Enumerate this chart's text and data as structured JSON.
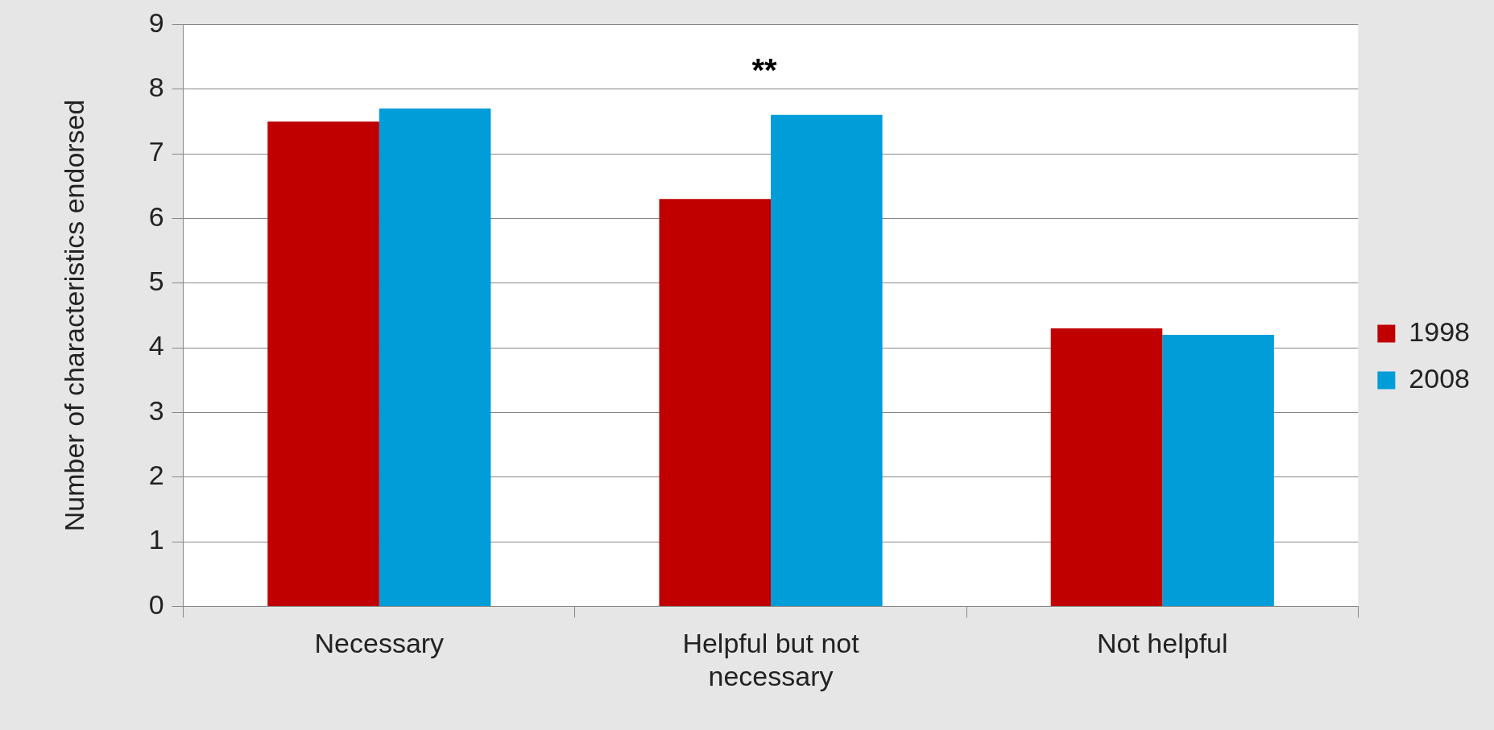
{
  "chart_data": {
    "type": "bar",
    "ylabel": "Number of characteristics endorsed",
    "categories": [
      "Necessary",
      "Helpful but not necessary",
      "Not helpful"
    ],
    "series": [
      {
        "name": "1998",
        "color": "#c00000",
        "values": [
          7.5,
          6.3,
          4.3
        ]
      },
      {
        "name": "2008",
        "color": "#009dd9",
        "values": [
          7.7,
          7.6,
          4.2
        ]
      }
    ],
    "ylim": [
      0,
      9
    ],
    "yticks": [
      0,
      1,
      2,
      3,
      4,
      5,
      6,
      7,
      8,
      9
    ],
    "grid": "y",
    "legend": "right",
    "annotations": [
      "**"
    ]
  }
}
